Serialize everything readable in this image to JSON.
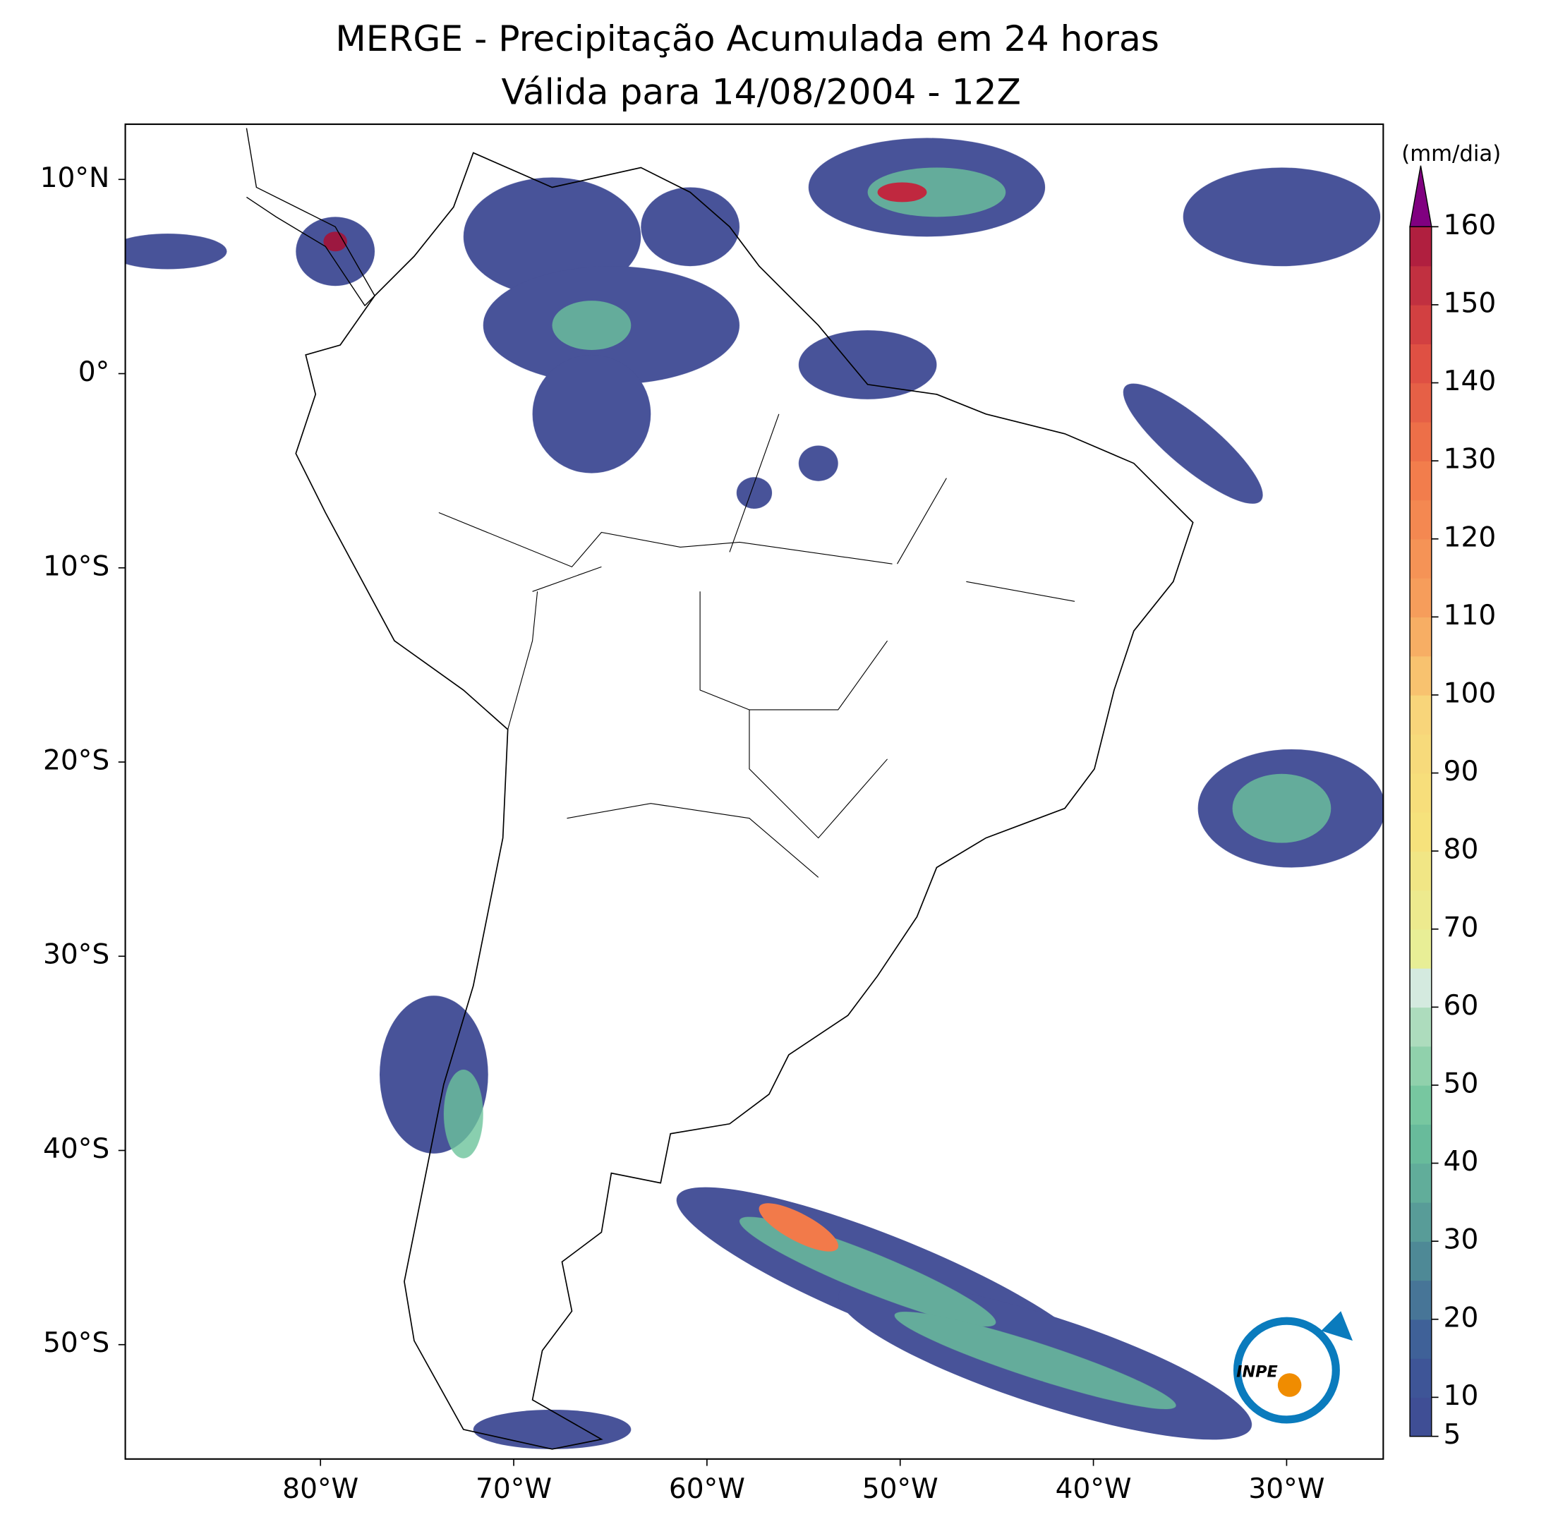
{
  "title": [
    "MERGE - Precipitação Acumulada em 24 horas",
    "Válida para 14/08/2004 - 12Z"
  ],
  "map": {
    "xticks": [
      {
        "value": -80,
        "label": "80°W"
      },
      {
        "value": -70,
        "label": "70°W"
      },
      {
        "value": -60,
        "label": "60°W"
      },
      {
        "value": -50,
        "label": "50°W"
      },
      {
        "value": -40,
        "label": "40°W"
      },
      {
        "value": -30,
        "label": "30°W"
      }
    ],
    "yticks": [
      {
        "value": 10,
        "label": "10°N"
      },
      {
        "value": 0,
        "label": "0°"
      },
      {
        "value": -10,
        "label": "10°S"
      },
      {
        "value": -20,
        "label": "20°S"
      },
      {
        "value": -30,
        "label": "30°S"
      },
      {
        "value": -40,
        "label": "40°S"
      },
      {
        "value": -50,
        "label": "50°S"
      }
    ]
  },
  "colorbar": {
    "label": "(mm/dia)",
    "lim": [
      5,
      160
    ],
    "ticks": [
      5,
      10,
      20,
      30,
      40,
      50,
      60,
      70,
      80,
      90,
      100,
      110,
      120,
      130,
      140,
      150,
      160
    ]
  },
  "logo": "INPE"
}
